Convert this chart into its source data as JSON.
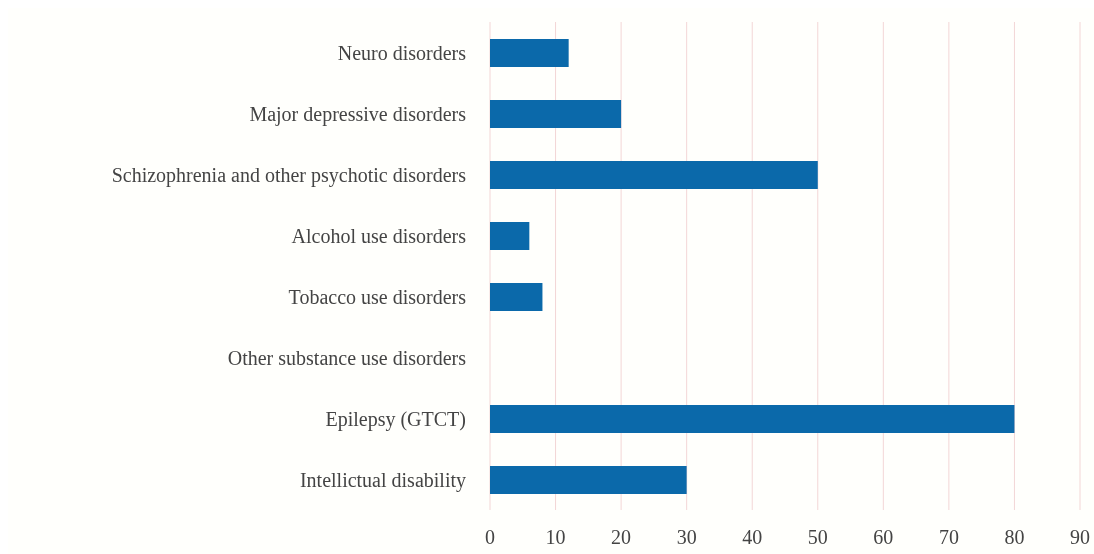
{
  "chart_data": {
    "type": "bar",
    "orientation": "horizontal",
    "categories": [
      "Neuro disorders",
      "Major depressive disorders",
      "Schizophrenia and other psychotic disorders",
      "Alcohol use disorders",
      "Tobacco use disorders",
      "Other substance use disorders",
      "Epilepsy (GTCT)",
      "Intellictual disability"
    ],
    "values": [
      12,
      20,
      50,
      6,
      8,
      0,
      80,
      30
    ],
    "color": "#0b69aa",
    "xlim": [
      0,
      90
    ],
    "xticks": [
      0,
      10,
      20,
      30,
      40,
      50,
      60,
      70,
      80,
      90
    ],
    "grid": "x"
  }
}
